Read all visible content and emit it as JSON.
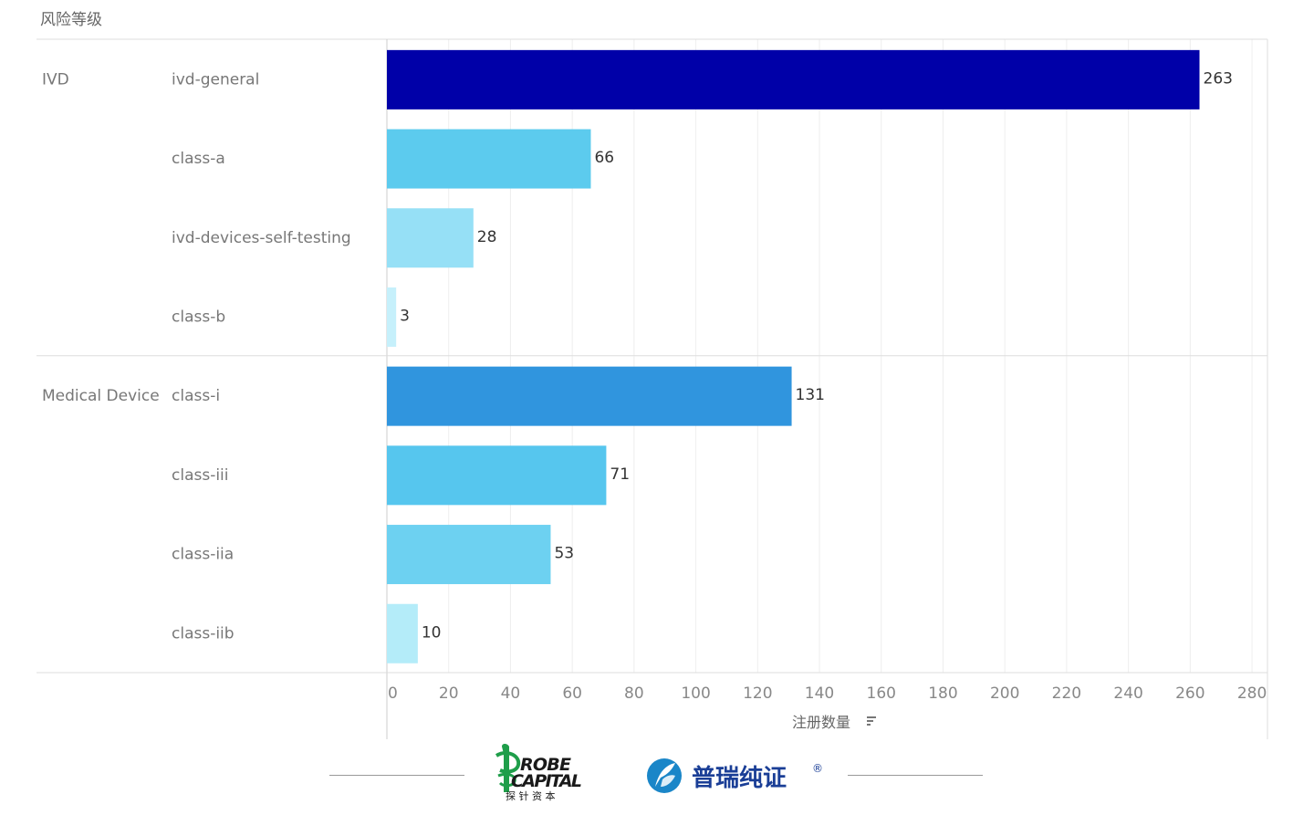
{
  "chart_data": {
    "type": "bar",
    "orientation": "horizontal",
    "header": "风险等级",
    "xlabel": "注册数量",
    "xlim": [
      0,
      285
    ],
    "xticks": [
      0,
      20,
      40,
      60,
      80,
      100,
      120,
      140,
      160,
      180,
      200,
      220,
      240,
      260,
      280
    ],
    "grid": true,
    "groups": [
      {
        "name": "IVD",
        "categories": [
          "ivd-general",
          "class-a",
          "ivd-devices-self-testing",
          "class-b"
        ],
        "values": [
          263,
          66,
          28,
          3
        ],
        "colors": [
          "#0000a8",
          "#5ccbee",
          "#96e0f6",
          "#c6f0fb"
        ]
      },
      {
        "name": "Medical Device",
        "categories": [
          "class-i",
          "class-iii",
          "class-iia",
          "class-iib"
        ],
        "values": [
          131,
          71,
          53,
          10
        ],
        "colors": [
          "#3095de",
          "#56c6ee",
          "#6dd1f1",
          "#b4ecf9"
        ]
      }
    ]
  },
  "footer": {
    "probe_logo_text": "ROBE CAPITAL",
    "probe_logo_chinese": "探 针 资 本",
    "puri_logo_text": "普瑞纯证",
    "puri_trademark": "®"
  }
}
